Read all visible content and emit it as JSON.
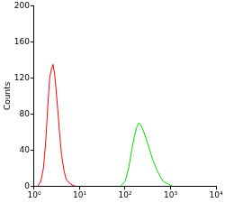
{
  "chart_data": {
    "type": "line",
    "y_label": "Counts",
    "log": "x",
    "grid": false,
    "xlim": [
      1,
      10000
    ],
    "xticks": [
      {
        "value": 1,
        "label": "10⁰"
      },
      {
        "value": 10,
        "label": "10¹"
      },
      {
        "value": 100,
        "label": "10²"
      },
      {
        "value": 1000,
        "label": "10³"
      },
      {
        "value": 10000,
        "label": "10⁴"
      }
    ],
    "ylim": [
      0,
      200
    ],
    "yticks": [
      0,
      40,
      80,
      120,
      160,
      200
    ],
    "series": [
      {
        "color": "#ff0000",
        "x": [
          1.2,
          1.4,
          1.6,
          1.8,
          2.0,
          2.2,
          2.4,
          2.6,
          2.8,
          3.0,
          3.3,
          3.6,
          4.0,
          4.5,
          5.0,
          6.0,
          7.0,
          8.0
        ],
        "values": [
          0,
          5,
          20,
          50,
          90,
          120,
          130,
          135,
          125,
          110,
          85,
          60,
          35,
          18,
          8,
          3,
          1,
          0
        ]
      },
      {
        "color": "#00dd00",
        "x": [
          80,
          100,
          120,
          140,
          160,
          180,
          200,
          220,
          250,
          300,
          350,
          400,
          500,
          600,
          700,
          900,
          1100
        ],
        "values": [
          0,
          5,
          20,
          40,
          55,
          65,
          70,
          68,
          62,
          50,
          40,
          30,
          18,
          10,
          5,
          2,
          0
        ]
      }
    ]
  }
}
